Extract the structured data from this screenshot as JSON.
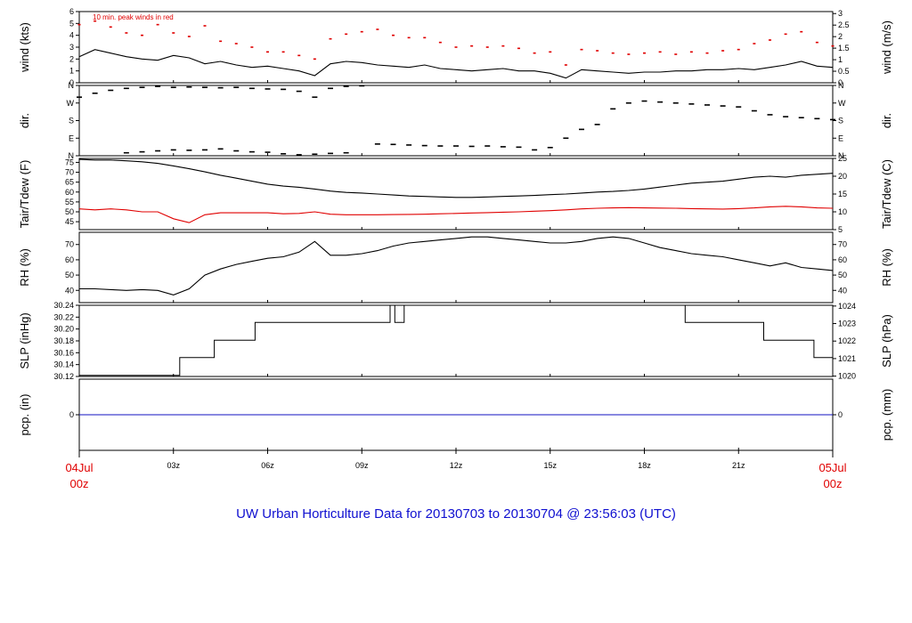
{
  "title": "UW Urban Horticulture Data for 20130703  to  20130704 @ 23:56:03  (UTC)",
  "colors": {
    "primary": "#000000",
    "peak": "#e00000",
    "tdew": "#e00000",
    "precip": "#1010c0",
    "title": "#1010d0"
  },
  "chart_data": [
    {
      "type": "line",
      "ylabel_left": "wind (kts)",
      "ylabel_right": "wind (m/s)",
      "ylim": [
        0,
        6
      ],
      "yticks_left": [
        "0",
        "1",
        "2",
        "3",
        "4",
        "5",
        "6"
      ],
      "yticks_right": [
        "0",
        "0.5",
        "1",
        "1.5",
        "2",
        "2.5",
        "3"
      ],
      "annotation": "10 min. peak winds in red",
      "series": [
        {
          "role": "speed",
          "x": [
            0,
            0.5,
            1,
            1.5,
            2,
            2.5,
            3,
            3.5,
            4,
            4.5,
            5,
            5.5,
            6,
            6.5,
            7,
            7.5,
            8,
            8.5,
            9,
            9.5,
            10,
            10.5,
            11,
            11.5,
            12,
            12.5,
            13,
            13.5,
            14,
            14.5,
            15,
            15.5,
            16,
            16.5,
            17,
            17.5,
            18,
            18.5,
            19,
            19.5,
            20,
            20.5,
            21,
            21.5,
            22,
            22.5,
            23,
            23.5,
            24
          ],
          "y": [
            2.2,
            2.8,
            2.5,
            2.2,
            2.0,
            1.9,
            2.3,
            2.1,
            1.6,
            1.8,
            1.5,
            1.3,
            1.4,
            1.2,
            1.0,
            0.6,
            1.6,
            1.8,
            1.7,
            1.5,
            1.4,
            1.3,
            1.5,
            1.2,
            1.1,
            1.0,
            1.1,
            1.2,
            1.0,
            1.0,
            0.8,
            0.4,
            1.1,
            1.0,
            0.9,
            0.8,
            0.9,
            0.9,
            1.0,
            1.0,
            1.1,
            1.1,
            1.2,
            1.1,
            1.3,
            1.5,
            1.8,
            1.4,
            1.3
          ]
        },
        {
          "role": "peak",
          "x": [
            0,
            0.5,
            1,
            1.5,
            2,
            2.5,
            3,
            3.5,
            4,
            4.5,
            5,
            5.5,
            6,
            6.5,
            7,
            7.5,
            8,
            8.5,
            9,
            9.5,
            10,
            10.5,
            11,
            11.5,
            12,
            12.5,
            13,
            13.5,
            14,
            14.5,
            15,
            15.5,
            16,
            16.5,
            17,
            17.5,
            18,
            18.5,
            19,
            19.5,
            20,
            20.5,
            21,
            21.5,
            22,
            22.5,
            23,
            23.5,
            24
          ],
          "y": [
            4.9,
            5.2,
            4.7,
            4.2,
            4.0,
            4.9,
            4.2,
            3.9,
            4.8,
            3.5,
            3.3,
            3.0,
            2.6,
            2.6,
            2.3,
            2.0,
            3.7,
            4.1,
            4.3,
            4.5,
            4.0,
            3.8,
            3.8,
            3.4,
            3.0,
            3.1,
            3.0,
            3.1,
            2.9,
            2.5,
            2.6,
            1.5,
            2.8,
            2.7,
            2.5,
            2.4,
            2.5,
            2.6,
            2.4,
            2.6,
            2.5,
            2.7,
            2.8,
            3.3,
            3.6,
            4.1,
            4.3,
            3.4,
            3.1
          ]
        }
      ]
    },
    {
      "type": "scatter",
      "ylabel_left": "dir.",
      "ylabel_right": "dir.",
      "ylim": [
        0,
        360
      ],
      "yticks_left": [
        "N",
        "E",
        "S",
        "W",
        "N"
      ],
      "yticks_right": [
        "N",
        "E",
        "S",
        "W",
        "N"
      ],
      "series": [
        {
          "role": "direction",
          "x": [
            0,
            0.5,
            1,
            1.5,
            2,
            2.5,
            3,
            3.5,
            4,
            4.5,
            5,
            5.5,
            6,
            6.5,
            7,
            7.5,
            8,
            8.5,
            9,
            9.5,
            10,
            10.5,
            11,
            11.5,
            12,
            12.5,
            13,
            13.5,
            14,
            14.5,
            15,
            15.5,
            16,
            16.5,
            17,
            17.5,
            18,
            18.5,
            19,
            19.5,
            20,
            20.5,
            21,
            21.5,
            22,
            22.5,
            23,
            23.5,
            24
          ],
          "y": [
            300,
            320,
            335,
            345,
            350,
            355,
            350,
            352,
            350,
            348,
            350,
            345,
            342,
            340,
            330,
            300,
            345,
            355,
            358,
            60,
            58,
            55,
            52,
            50,
            50,
            48,
            50,
            46,
            44,
            30,
            42,
            90,
            135,
            160,
            240,
            270,
            280,
            275,
            270,
            265,
            260,
            255,
            250,
            230,
            210,
            200,
            195,
            190,
            185
          ]
        },
        {
          "role": "direction-wrap",
          "x": [
            1.5,
            2,
            2.5,
            3,
            3.5,
            4,
            4.5,
            5,
            5.5,
            6,
            6.5,
            7,
            7.5,
            8,
            8.5
          ],
          "y": [
            15,
            20,
            25,
            30,
            28,
            30,
            35,
            25,
            20,
            18,
            10,
            5,
            8,
            12,
            15
          ]
        }
      ]
    },
    {
      "type": "line",
      "ylabel_left": "Tair/Tdew (F)",
      "ylabel_right": "Tair/Tdew (C)",
      "ylim": [
        41,
        77
      ],
      "yticks_left": [
        "45",
        "50",
        "55",
        "60",
        "65",
        "70",
        "75"
      ],
      "yticks_right": [
        "5",
        "10",
        "15",
        "20",
        "25"
      ],
      "series": [
        {
          "role": "tair",
          "x": [
            0,
            0.5,
            1,
            1.5,
            2,
            2.5,
            3,
            3.5,
            4,
            4.5,
            5,
            5.5,
            6,
            6.5,
            7,
            7.5,
            8,
            8.5,
            9,
            9.5,
            10,
            10.5,
            11,
            11.5,
            12,
            12.5,
            13,
            13.5,
            14,
            14.5,
            15,
            15.5,
            16,
            16.5,
            17,
            17.5,
            18,
            18.5,
            19,
            19.5,
            20,
            20.5,
            21,
            21.5,
            22,
            22.5,
            23,
            23.5,
            24
          ],
          "y": [
            76.5,
            76.2,
            76.2,
            75.8,
            75.3,
            74.5,
            73.2,
            71.8,
            70.2,
            68.5,
            67.0,
            65.5,
            64.0,
            63.0,
            62.4,
            61.5,
            60.5,
            59.8,
            59.5,
            59.0,
            58.5,
            58.0,
            57.8,
            57.5,
            57.3,
            57.3,
            57.5,
            57.8,
            58.0,
            58.3,
            58.7,
            59.0,
            59.5,
            60.0,
            60.3,
            60.8,
            61.5,
            62.5,
            63.5,
            64.5,
            65.0,
            65.5,
            66.5,
            67.5,
            68.0,
            67.5,
            68.5,
            69.0,
            69.5
          ]
        },
        {
          "role": "tdew",
          "x": [
            0,
            0.5,
            1,
            1.5,
            2,
            2.5,
            3,
            3.5,
            4,
            4.5,
            5,
            5.5,
            6,
            6.5,
            7,
            7.5,
            8,
            8.5,
            9,
            9.5,
            10,
            10.5,
            11,
            11.5,
            12,
            12.5,
            13,
            13.5,
            14,
            14.5,
            15,
            15.5,
            16,
            16.5,
            17,
            17.5,
            18,
            18.5,
            19,
            19.5,
            20,
            20.5,
            21,
            21.5,
            22,
            22.5,
            23,
            23.5,
            24
          ],
          "y": [
            51.5,
            51.0,
            51.5,
            51.0,
            50.0,
            50.0,
            46.5,
            44.5,
            48.5,
            49.5,
            49.5,
            49.5,
            49.5,
            49.0,
            49.2,
            50.0,
            48.8,
            48.5,
            48.5,
            48.5,
            48.6,
            48.7,
            48.8,
            49.0,
            49.2,
            49.4,
            49.6,
            49.8,
            50.0,
            50.3,
            50.6,
            51.0,
            51.5,
            51.8,
            52.0,
            52.1,
            52.0,
            51.9,
            51.8,
            51.6,
            51.5,
            51.4,
            51.6,
            52.0,
            52.5,
            52.8,
            52.5,
            52.0,
            51.8
          ]
        }
      ]
    },
    {
      "type": "line",
      "ylabel_left": "RH (%)",
      "ylabel_right": "RH (%)",
      "ylim": [
        32,
        78
      ],
      "yticks_left": [
        "40",
        "50",
        "60",
        "70"
      ],
      "yticks_right": [
        "40",
        "50",
        "60",
        "70"
      ],
      "series": [
        {
          "role": "rh",
          "x": [
            0,
            0.5,
            1,
            1.5,
            2,
            2.5,
            3,
            3.5,
            4,
            4.5,
            5,
            5.5,
            6,
            6.5,
            7,
            7.5,
            8,
            8.5,
            9,
            9.5,
            10,
            10.5,
            11,
            11.5,
            12,
            12.5,
            13,
            13.5,
            14,
            14.5,
            15,
            15.5,
            16,
            16.5,
            17,
            17.5,
            18,
            18.5,
            19,
            19.5,
            20,
            20.5,
            21,
            21.5,
            22,
            22.5,
            23,
            23.5,
            24
          ],
          "y": [
            41,
            41,
            40.5,
            40,
            40.5,
            40,
            37,
            41,
            50,
            54,
            57,
            59,
            61,
            62,
            65,
            72,
            63,
            63,
            64,
            66,
            69,
            71,
            72,
            73,
            74,
            75,
            75,
            74,
            73,
            72,
            71,
            71,
            72,
            74,
            75,
            74,
            71,
            68,
            66,
            64,
            63,
            62,
            60,
            58,
            56,
            58,
            55,
            54,
            53
          ]
        }
      ]
    },
    {
      "type": "line",
      "ylabel_left": "SLP (inHg)",
      "ylabel_right": "SLP (hPa)",
      "ylim": [
        30.12,
        30.24
      ],
      "yticks_left": [
        "30.12",
        "30.14",
        "30.16",
        "30.18",
        "30.20",
        "30.22",
        "30.24"
      ],
      "yticks_right": [
        "1020",
        "1021",
        "1022",
        "1023",
        "1024"
      ],
      "series": [
        {
          "role": "slp",
          "x": [
            0,
            3.2,
            3.2,
            4.3,
            4.3,
            5.6,
            5.6,
            9.9,
            9.9,
            10.05,
            10.05,
            10.35,
            10.35,
            19.3,
            19.3,
            21.8,
            21.8,
            23.4,
            23.4,
            24
          ],
          "y": [
            30.122,
            30.122,
            30.152,
            30.152,
            30.181,
            30.181,
            30.211,
            30.211,
            30.24,
            30.24,
            30.211,
            30.211,
            30.24,
            30.24,
            30.211,
            30.211,
            30.181,
            30.181,
            30.152,
            30.152
          ]
        }
      ]
    },
    {
      "type": "line",
      "ylabel_left": "pcp. (in)",
      "ylabel_right": "pcp. (mm)",
      "ylim": [
        -1,
        1
      ],
      "yticks_left": [
        "0"
      ],
      "yticks_right": [
        "0"
      ],
      "series": [
        {
          "role": "precip",
          "x": [
            0,
            24
          ],
          "y": [
            0,
            0
          ]
        }
      ]
    }
  ],
  "x_axis": {
    "xlim": [
      0,
      24
    ],
    "ticks": [
      {
        "x": 0,
        "label": "",
        "major": true
      },
      {
        "x": 3,
        "label": "03z",
        "major": false
      },
      {
        "x": 6,
        "label": "06z",
        "major": false
      },
      {
        "x": 9,
        "label": "09z",
        "major": false
      },
      {
        "x": 12,
        "label": "12z",
        "major": false
      },
      {
        "x": 15,
        "label": "15z",
        "major": false
      },
      {
        "x": 18,
        "label": "18z",
        "major": false
      },
      {
        "x": 21,
        "label": "21z",
        "major": false
      },
      {
        "x": 24,
        "label": "",
        "major": true
      }
    ],
    "start_label": [
      "04Jul",
      "00z"
    ],
    "end_label": [
      "05Jul",
      "00z"
    ]
  }
}
